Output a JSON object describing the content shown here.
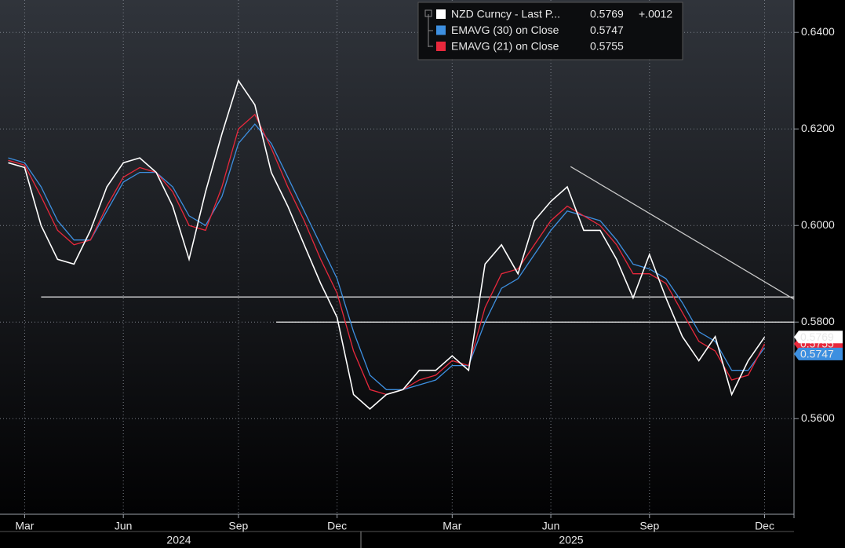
{
  "chart_data": {
    "type": "line",
    "categories": [
      null,
      "Mar",
      null,
      null,
      null,
      null,
      null,
      "Jun",
      null,
      null,
      null,
      null,
      null,
      null,
      "Sep",
      null,
      null,
      null,
      null,
      null,
      "Dec",
      null,
      null,
      null,
      null,
      null,
      null,
      "Mar",
      null,
      null,
      null,
      null,
      null,
      "Jun",
      null,
      null,
      null,
      null,
      null,
      "Sep",
      null,
      null,
      null,
      null,
      null,
      null,
      "Dec"
    ],
    "year_labels": [
      "2024",
      "2025"
    ],
    "series": [
      {
        "name": "NZD Curncy - Last P...",
        "color": "#ffffff",
        "change": "+.0012",
        "values": [
          0.613,
          0.612,
          0.6,
          0.593,
          0.592,
          0.599,
          0.608,
          0.613,
          0.614,
          0.611,
          0.604,
          0.593,
          0.607,
          0.619,
          0.63,
          0.625,
          0.611,
          0.604,
          0.596,
          0.588,
          0.581,
          0.565,
          0.562,
          0.565,
          0.566,
          0.57,
          0.57,
          0.573,
          0.57,
          0.592,
          0.596,
          0.59,
          0.601,
          0.605,
          0.608,
          0.599,
          0.599,
          0.593,
          0.585,
          0.594,
          0.585,
          0.577,
          0.572,
          0.577,
          0.565,
          0.572,
          0.5769
        ]
      },
      {
        "name": "EMAVG (30)  on Close",
        "color": "#3d8fe0",
        "values": [
          0.614,
          0.613,
          0.608,
          0.601,
          0.597,
          0.597,
          0.603,
          0.609,
          0.611,
          0.611,
          0.608,
          0.602,
          0.6,
          0.606,
          0.617,
          0.621,
          0.617,
          0.61,
          0.603,
          0.596,
          0.589,
          0.578,
          0.569,
          0.566,
          0.566,
          0.567,
          0.568,
          0.571,
          0.571,
          0.58,
          0.587,
          0.589,
          0.594,
          0.599,
          0.603,
          0.602,
          0.601,
          0.597,
          0.592,
          0.591,
          0.589,
          0.584,
          0.578,
          0.576,
          0.57,
          0.57,
          0.5747
        ]
      },
      {
        "name": "EMAVG (21)  on Close",
        "color": "#e8283c",
        "values": [
          0.6135,
          0.6125,
          0.606,
          0.599,
          0.596,
          0.597,
          0.604,
          0.61,
          0.612,
          0.611,
          0.607,
          0.6,
          0.599,
          0.608,
          0.62,
          0.623,
          0.616,
          0.608,
          0.601,
          0.593,
          0.586,
          0.574,
          0.566,
          0.565,
          0.566,
          0.568,
          0.569,
          0.572,
          0.571,
          0.583,
          0.59,
          0.591,
          0.596,
          0.601,
          0.604,
          0.602,
          0.6,
          0.596,
          0.59,
          0.59,
          0.588,
          0.582,
          0.576,
          0.574,
          0.568,
          0.569,
          0.5755
        ]
      }
    ],
    "trendlines": [
      {
        "x": [
          2,
          47.8
        ],
        "y": [
          0.5852,
          0.5852
        ]
      },
      {
        "x": [
          16.3,
          47.8
        ],
        "y": [
          0.58,
          0.58
        ]
      },
      {
        "x": [
          34.2,
          47.8
        ],
        "y": [
          0.6122,
          0.5847
        ]
      }
    ],
    "ylim": [
      0.5402,
      0.6467
    ],
    "yticks": [
      {
        "value": 0.56,
        "label": "0.5600"
      },
      {
        "value": 0.58,
        "label": "0.5800"
      },
      {
        "value": 0.6,
        "label": "0.6000"
      },
      {
        "value": 0.62,
        "label": "0.6200"
      },
      {
        "value": 0.64,
        "label": "0.6400"
      }
    ],
    "grid": true
  }
}
